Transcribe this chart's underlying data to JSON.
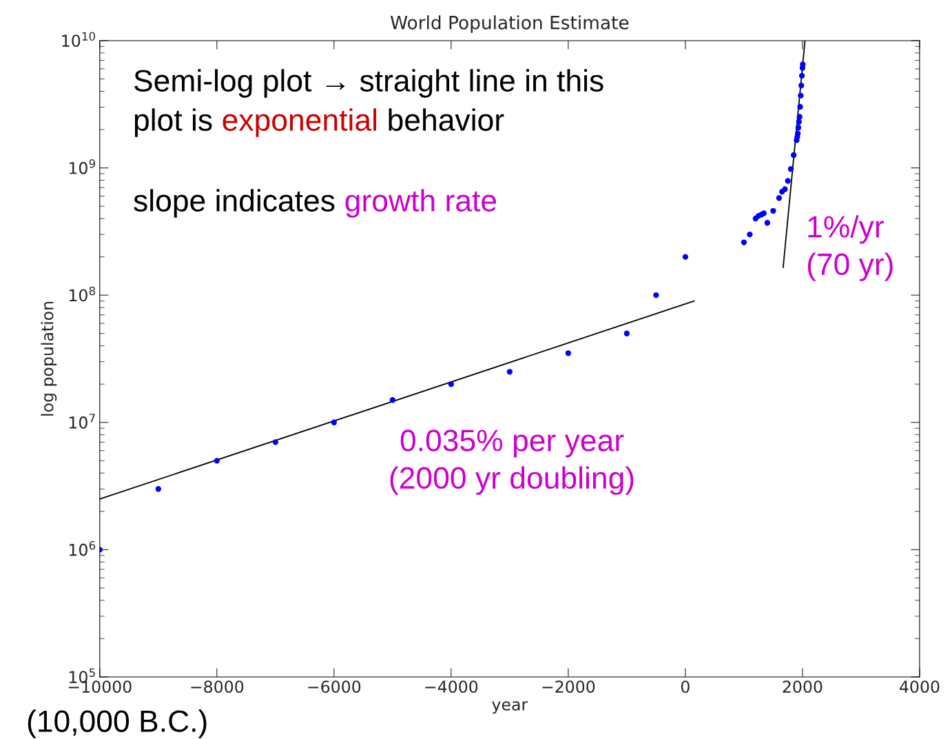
{
  "chart_data": {
    "type": "scatter",
    "title": "World Population Estimate",
    "xlabel": "year",
    "ylabel": "log population",
    "log": "y",
    "grid": false,
    "xlim": [
      -10000,
      4000
    ],
    "xticks": [
      {
        "value": -10000,
        "label": "−10000"
      },
      {
        "value": -8000,
        "label": "−8000"
      },
      {
        "value": -6000,
        "label": "−6000"
      },
      {
        "value": -4000,
        "label": "−4000"
      },
      {
        "value": -2000,
        "label": "−2000"
      },
      0,
      2000,
      4000
    ],
    "ylim": [
      100000,
      10000000000
    ],
    "yticks": [
      {
        "value": 100000,
        "label": "10$^{5}$"
      },
      {
        "value": 1000000,
        "label": "10$^{6}$"
      },
      {
        "value": 10000000,
        "label": "10$^{7}$"
      },
      {
        "value": 100000000,
        "label": "10$^{8}$"
      },
      {
        "value": 1000000000,
        "label": "10$^{9}$"
      },
      {
        "value": 10000000000,
        "label": "10$^{10}$"
      }
    ],
    "series": [
      {
        "marker": "circle",
        "color": "#0000ff",
        "x": [
          -10000,
          -9000,
          -8000,
          -7000,
          -6000,
          -5000,
          -4000,
          -3000,
          -2000,
          -1000,
          -500,
          1,
          1000,
          1100,
          1200,
          1250,
          1300,
          1340,
          1400,
          1500,
          1600,
          1650,
          1700,
          1750,
          1800,
          1850,
          1900,
          1910,
          1920,
          1930,
          1940,
          1950,
          1960,
          1970,
          1980,
          1990,
          2000,
          2005
        ],
        "values": [
          1000000,
          3000000,
          5000000,
          7000000,
          10000000,
          15000000,
          20000000,
          25000000,
          35000000,
          50000000,
          100000000,
          200000000,
          260000000,
          300000000,
          400000000,
          420000000,
          430000000,
          440000000,
          370000000,
          460000000,
          580000000,
          650000000,
          680000000,
          790000000,
          980000000,
          1260000000,
          1650000000,
          1750000000,
          1860000000,
          2070000000,
          2300000000,
          2520000000,
          3020000000,
          3700000000,
          4440000000,
          5300000000,
          6100000000,
          6500000000
        ]
      },
      {
        "type": "line",
        "color": "#000000",
        "x": [
          -10000,
          150
        ],
        "values": [
          2500000,
          90000000
        ]
      },
      {
        "type": "line",
        "color": "#000000",
        "x": [
          1670,
          2043
        ],
        "values": [
          165000000,
          10000000000
        ]
      }
    ],
    "annotations": [
      "Semi-log plot → straight line in this",
      "plot is ",
      "exponential",
      " behavior",
      "slope indicates ",
      "growth rate",
      "0.035% per year\n(2000 yr doubling)",
      "1%/yr\n(70 yr)",
      "(10,000 B.C.)"
    ]
  }
}
